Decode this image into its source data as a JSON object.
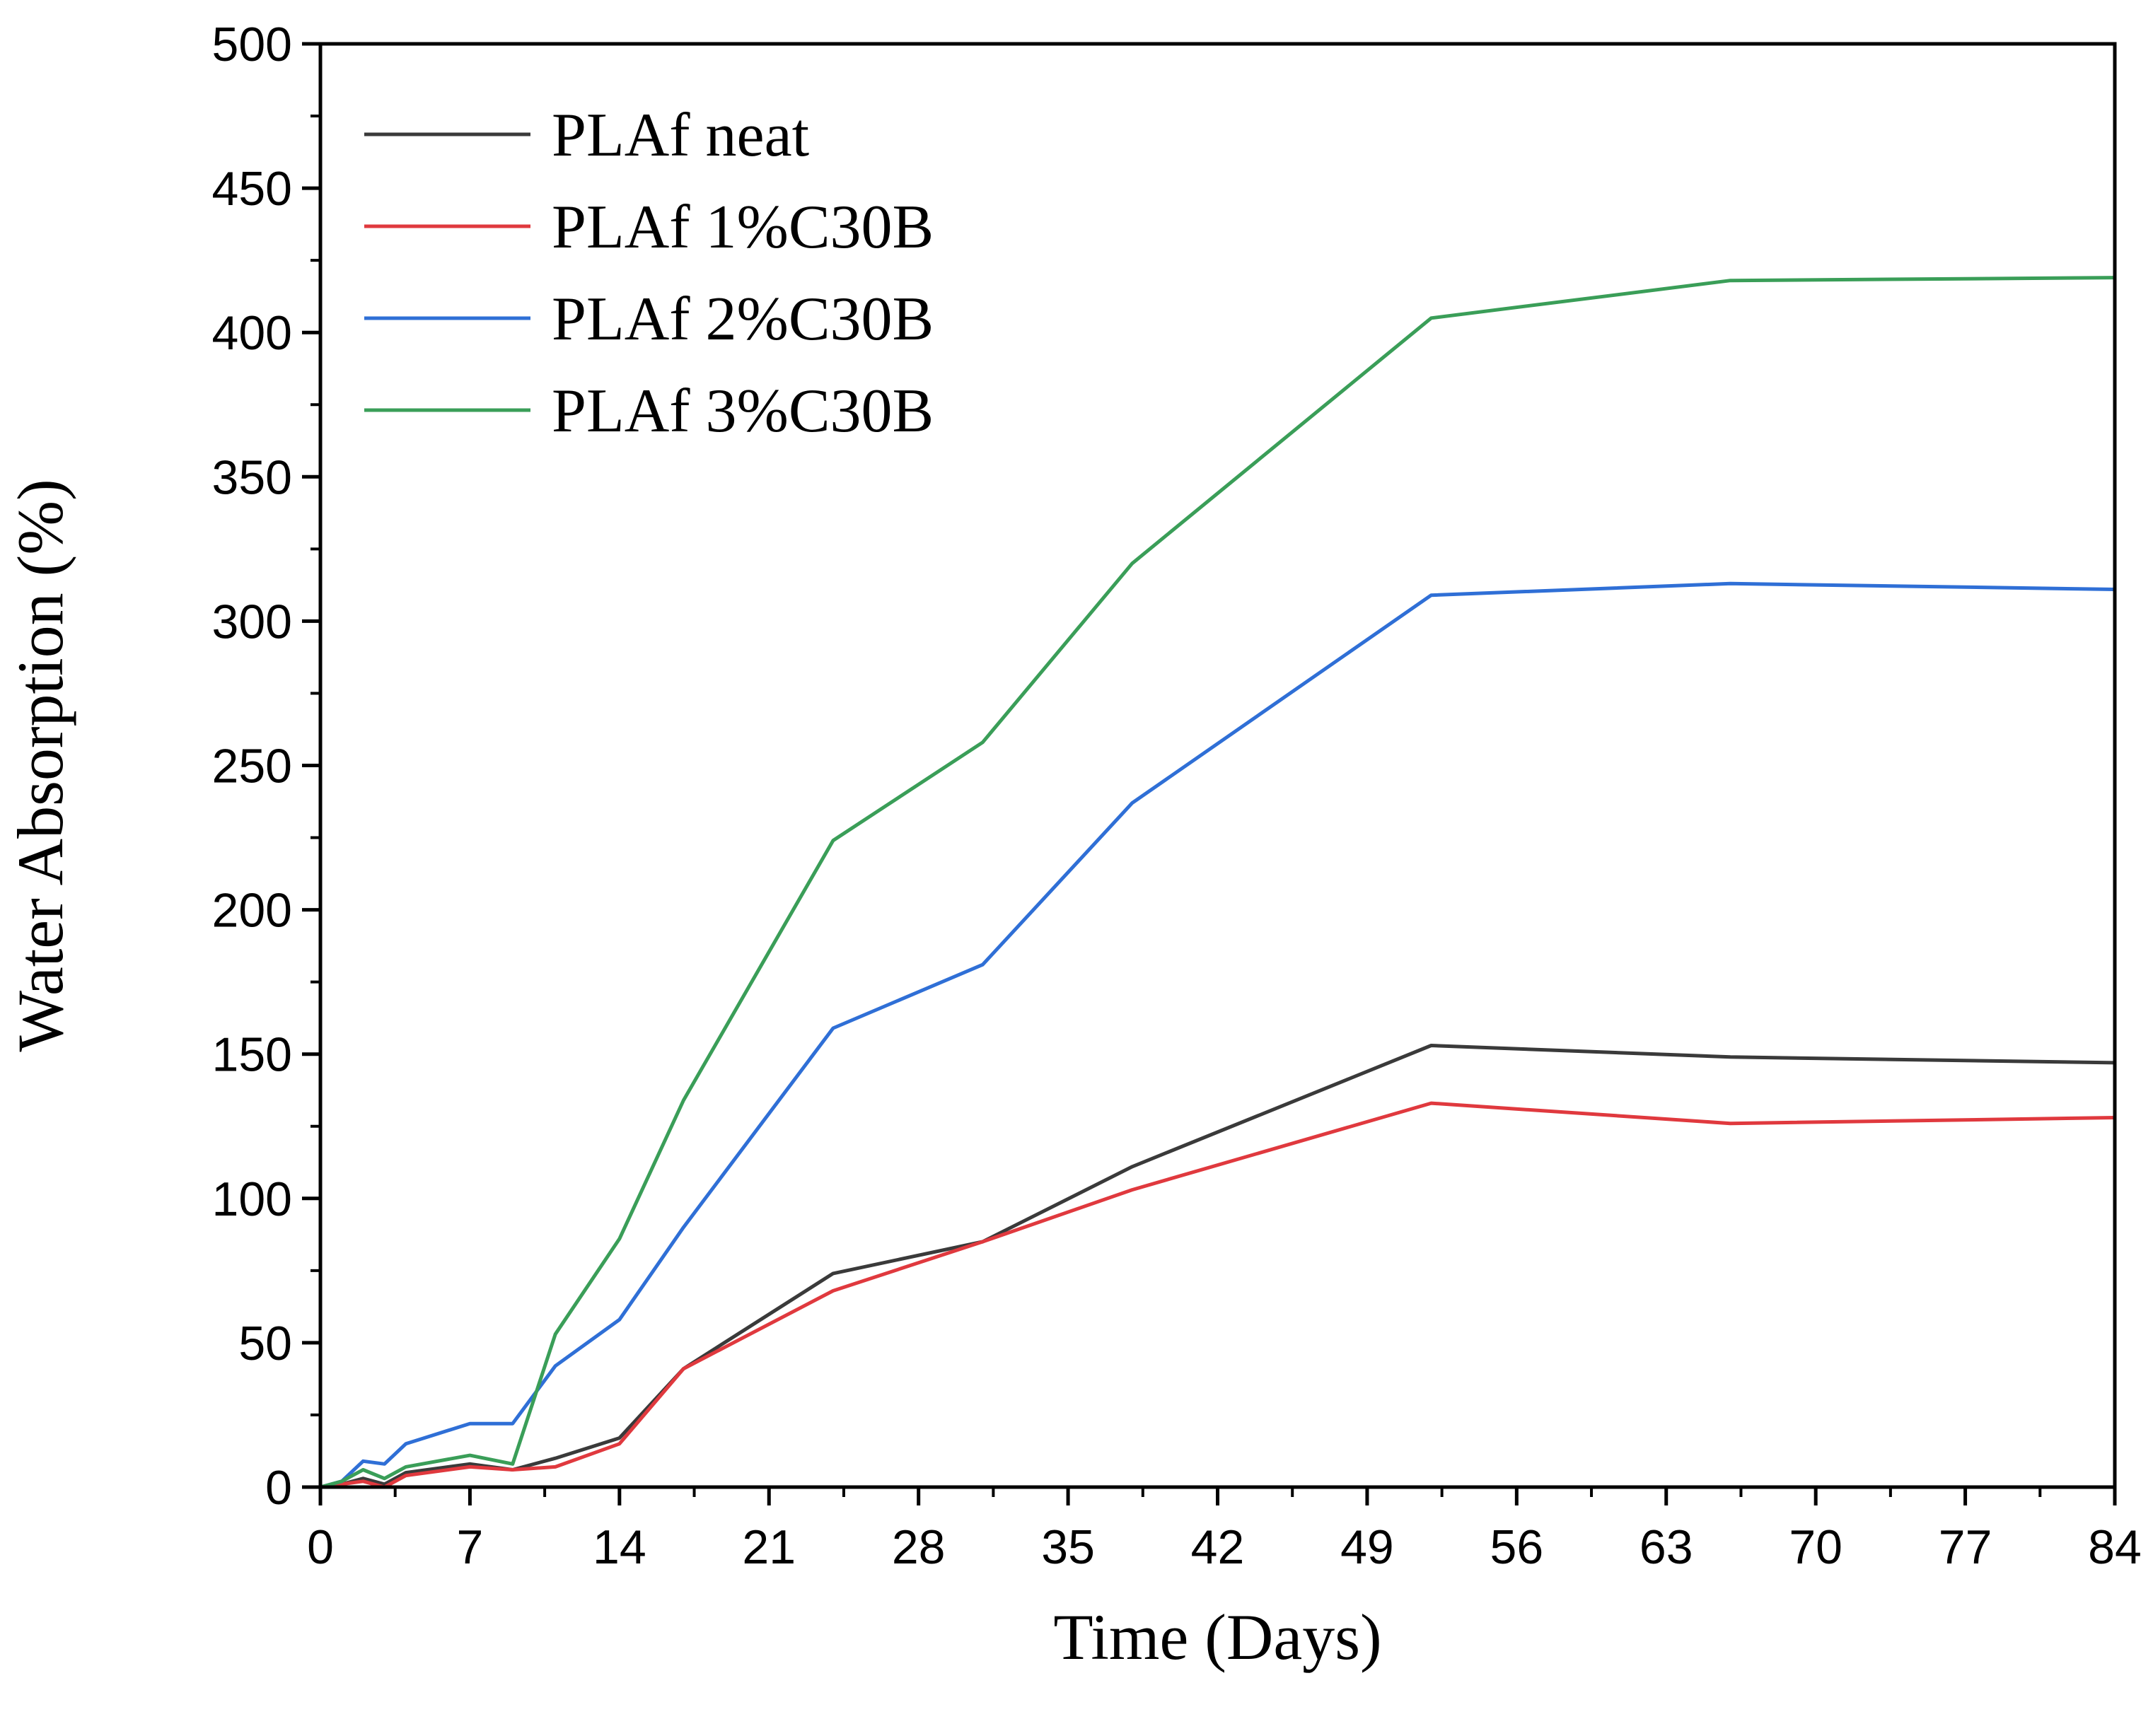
{
  "chart_data": {
    "type": "line",
    "title": "",
    "xlabel": "Time (Days)",
    "ylabel": "Water Absorption (%)",
    "xlim": [
      0,
      84
    ],
    "ylim": [
      0,
      500
    ],
    "xticks": [
      0,
      7,
      14,
      21,
      28,
      35,
      42,
      49,
      56,
      63,
      70,
      77,
      84
    ],
    "yticks": [
      0,
      50,
      100,
      150,
      200,
      250,
      300,
      350,
      400,
      450,
      500
    ],
    "grid": false,
    "legend_position": "top-left",
    "series": [
      {
        "name": "PLAf neat",
        "color": "#3a3a3a",
        "x": [
          0,
          1,
          2,
          3,
          4,
          7,
          9,
          11,
          14,
          17,
          24,
          31,
          38,
          52,
          66,
          84
        ],
        "y": [
          0,
          1,
          3,
          1,
          5,
          8,
          6,
          10,
          17,
          41,
          74,
          85,
          111,
          153,
          149,
          147
        ]
      },
      {
        "name": "PLAf 1%C30B",
        "color": "#e0393e",
        "x": [
          0,
          1,
          2,
          3,
          4,
          7,
          9,
          11,
          14,
          17,
          24,
          31,
          38,
          52,
          66,
          84
        ],
        "y": [
          0,
          1,
          2,
          0,
          4,
          7,
          6,
          7,
          15,
          41,
          68,
          85,
          103,
          133,
          126,
          128
        ]
      },
      {
        "name": "PLAf 2%C30B",
        "color": "#2f6fd6",
        "x": [
          0,
          1,
          2,
          3,
          4,
          7,
          9,
          11,
          14,
          17,
          24,
          31,
          38,
          52,
          66,
          84
        ],
        "y": [
          0,
          2,
          9,
          8,
          15,
          22,
          22,
          42,
          58,
          90,
          159,
          181,
          237,
          309,
          313,
          311
        ]
      },
      {
        "name": "PLAf 3%C30B",
        "color": "#3a9e58",
        "x": [
          0,
          1,
          2,
          3,
          4,
          7,
          9,
          11,
          14,
          17,
          24,
          31,
          38,
          52,
          66,
          84
        ],
        "y": [
          0,
          2,
          6,
          3,
          7,
          11,
          8,
          53,
          86,
          134,
          224,
          258,
          320,
          405,
          418,
          419
        ]
      }
    ]
  }
}
